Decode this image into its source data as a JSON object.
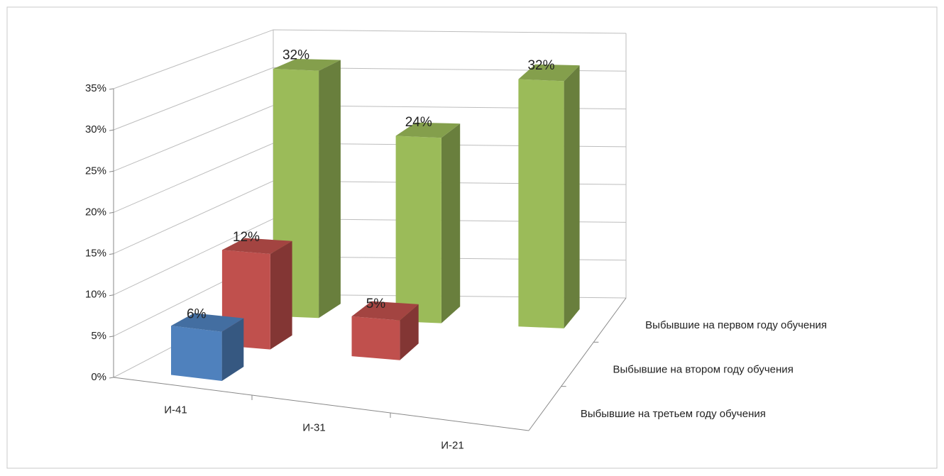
{
  "chart_data": {
    "type": "bar3d",
    "categories": [
      "И-41",
      "И-31",
      "И-21"
    ],
    "series": [
      {
        "name": "Выбывшие на третьем году обучения",
        "color": "#4f81bd",
        "values": [
          6,
          null,
          null
        ],
        "value_labels": [
          "6%",
          null,
          null
        ]
      },
      {
        "name": "Выбывшие на втором году обучения",
        "color": "#c0504d",
        "values": [
          12,
          5,
          null
        ],
        "value_labels": [
          "12%",
          "5%",
          null
        ]
      },
      {
        "name": "Выбывшие на первом году обучения",
        "color": "#9bbb59",
        "values": [
          32,
          24,
          32
        ],
        "value_labels": [
          "32%",
          "24%",
          "32%"
        ]
      }
    ],
    "ylim": [
      0,
      35
    ],
    "yticks": [
      {
        "value": 0,
        "label": "0%"
      },
      {
        "value": 5,
        "label": "5%"
      },
      {
        "value": 10,
        "label": "10%"
      },
      {
        "value": 15,
        "label": "15%"
      },
      {
        "value": 20,
        "label": "20%"
      },
      {
        "value": 25,
        "label": "25%"
      },
      {
        "value": 30,
        "label": "30%"
      },
      {
        "value": 35,
        "label": "35%"
      }
    ],
    "grid": true
  }
}
